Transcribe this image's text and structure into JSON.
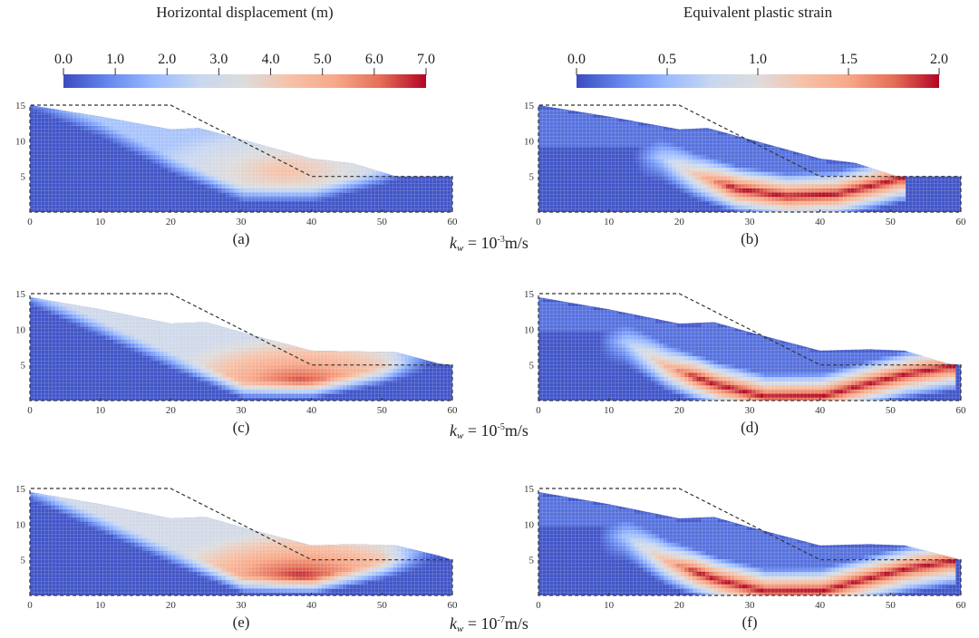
{
  "chart_data": [
    {
      "type": "heatmap",
      "role": "colorbar",
      "id": "hd",
      "title": "Horizontal displacement (m)",
      "colormap": "coolwarm",
      "range": [
        0.0,
        7.0
      ],
      "ticks": [
        "0.0",
        "1.0",
        "2.0",
        "3.0",
        "4.0",
        "5.0",
        "6.0",
        "7.0"
      ],
      "tick_values": [
        0,
        1,
        2,
        3,
        4,
        5,
        6,
        7
      ]
    },
    {
      "type": "heatmap",
      "role": "colorbar",
      "id": "eps",
      "title": "Equivalent plastic strain",
      "colormap": "coolwarm",
      "range": [
        0.0,
        2.0
      ],
      "ticks": [
        "0.0",
        "0.5",
        "1.0",
        "1.5",
        "2.0"
      ],
      "tick_values": [
        0,
        0.5,
        1.0,
        1.5,
        2.0
      ]
    }
  ],
  "colormap_stops": [
    "#3b4cc0",
    "#6788ee",
    "#9abbff",
    "#c9d7f0",
    "#dddcdc",
    "#f6c1a8",
    "#f7a889",
    "#e46e56",
    "#b40426"
  ],
  "axes": {
    "xlim": [
      0,
      60
    ],
    "ylim": [
      0,
      15
    ],
    "xticks": [
      "0",
      "10",
      "20",
      "30",
      "40",
      "50",
      "60"
    ],
    "xtick_values": [
      0,
      10,
      20,
      30,
      40,
      50,
      60
    ],
    "yticks": [
      "5",
      "10",
      "15"
    ],
    "ytick_values": [
      5,
      10,
      15
    ]
  },
  "initial_slope_profile": {
    "x": [
      0,
      20,
      40,
      60
    ],
    "y": [
      15,
      15,
      5,
      5
    ],
    "style": "dashed"
  },
  "rows": [
    {
      "kw_prefix": "k",
      "kw_sub": "w",
      "kw_eq": " = 10",
      "kw_exp": "-3",
      "kw_unit": "m/s",
      "panels": [
        {
          "letter": "(a)",
          "field": "Horizontal displacement",
          "colorbar": "hd",
          "deformed_surface": {
            "x": [
              0,
              10,
              20,
              24,
              30,
              40,
              46,
              52,
              60
            ],
            "y": [
              15,
              13.4,
              11.6,
              11.8,
              10.2,
              7.5,
              6.8,
              5.0,
              5.0
            ]
          },
          "sliding_base": {
            "x": [
              0,
              10,
              20,
              30,
              40,
              50,
              53
            ],
            "y": [
              14.5,
              10.5,
              5.5,
              1.5,
              1.5,
              4.0,
              5.0
            ]
          },
          "peak_value": 4.5,
          "peak_center": [
            36,
            6
          ]
        },
        {
          "letter": "(b)",
          "field": "Equivalent plastic strain",
          "colorbar": "eps",
          "deformed_surface": {
            "x": [
              0,
              10,
              20,
              24,
              30,
              40,
              45,
              51,
              60
            ],
            "y": [
              15,
              13.4,
              11.6,
              11.8,
              10.2,
              7.5,
              6.9,
              5.0,
              5.0
            ]
          },
          "shear_band": {
            "x": [
              17,
              22,
              28,
              35,
              42,
              48,
              51
            ],
            "y": [
              8,
              5.5,
              3.5,
              2.5,
              2.8,
              4.2,
              5.0
            ]
          },
          "peak_value": 2.0
        }
      ]
    },
    {
      "kw_prefix": "k",
      "kw_sub": "w",
      "kw_eq": " = 10",
      "kw_exp": "-5",
      "kw_unit": "m/s",
      "panels": [
        {
          "letter": "(c)",
          "field": "Horizontal displacement",
          "colorbar": "hd",
          "deformed_surface": {
            "x": [
              0,
              10,
              20,
              25,
              30,
              40,
              46,
              52,
              58,
              60
            ],
            "y": [
              14.5,
              12.8,
              10.8,
              11.0,
              9.6,
              7.0,
              6.9,
              6.8,
              5.2,
              5.0
            ]
          },
          "sliding_base": {
            "x": [
              0,
              10,
              20,
              30,
              40,
              50,
              60
            ],
            "y": [
              13.5,
              9.0,
              4.5,
              0.5,
              0.5,
              2.5,
              5.0
            ]
          },
          "peak_value": 6.5,
          "peak_center": [
            38,
            3
          ]
        },
        {
          "letter": "(d)",
          "field": "Equivalent plastic strain",
          "colorbar": "eps",
          "deformed_surface": {
            "x": [
              0,
              10,
              20,
              25,
              30,
              40,
              47,
              52,
              58,
              60
            ],
            "y": [
              14.5,
              12.8,
              10.8,
              11.0,
              9.6,
              7.0,
              7.2,
              7.0,
              5.2,
              5.0
            ]
          },
          "shear_band": {
            "x": [
              12,
              18,
              25,
              32,
              40,
              46,
              52,
              58
            ],
            "y": [
              8.5,
              5.0,
              2.5,
              0.8,
              0.9,
              2.5,
              4.0,
              5.0
            ]
          },
          "peak_value": 2.0
        }
      ]
    },
    {
      "kw_prefix": "k",
      "kw_sub": "w",
      "kw_eq": " = 10",
      "kw_exp": "-7",
      "kw_unit": "m/s",
      "panels": [
        {
          "letter": "(e)",
          "field": "Horizontal displacement",
          "colorbar": "hd",
          "deformed_surface": {
            "x": [
              0,
              10,
              20,
              25,
              30,
              40,
              46,
              52,
              58,
              60
            ],
            "y": [
              14.5,
              12.8,
              10.8,
              11.0,
              9.6,
              7.0,
              7.2,
              7.0,
              5.6,
              5.0
            ]
          },
          "sliding_base": {
            "x": [
              0,
              10,
              20,
              30,
              40,
              50,
              60
            ],
            "y": [
              13.5,
              9.0,
              4.5,
              0.5,
              0.3,
              2.5,
              5.0
            ]
          },
          "peak_value": 6.8,
          "peak_center": [
            38,
            3
          ]
        },
        {
          "letter": "(f)",
          "field": "Equivalent plastic strain",
          "colorbar": "eps",
          "deformed_surface": {
            "x": [
              0,
              10,
              20,
              25,
              30,
              40,
              47,
              52,
              58,
              60
            ],
            "y": [
              14.5,
              12.8,
              10.8,
              11.0,
              9.6,
              7.0,
              7.2,
              7.0,
              5.5,
              5.0
            ]
          },
          "shear_band": {
            "x": [
              12,
              18,
              25,
              32,
              40,
              46,
              52,
              58
            ],
            "y": [
              8.5,
              5.0,
              2.5,
              0.8,
              0.9,
              2.5,
              4.0,
              5.0
            ]
          },
          "peak_value": 2.0
        }
      ]
    }
  ]
}
